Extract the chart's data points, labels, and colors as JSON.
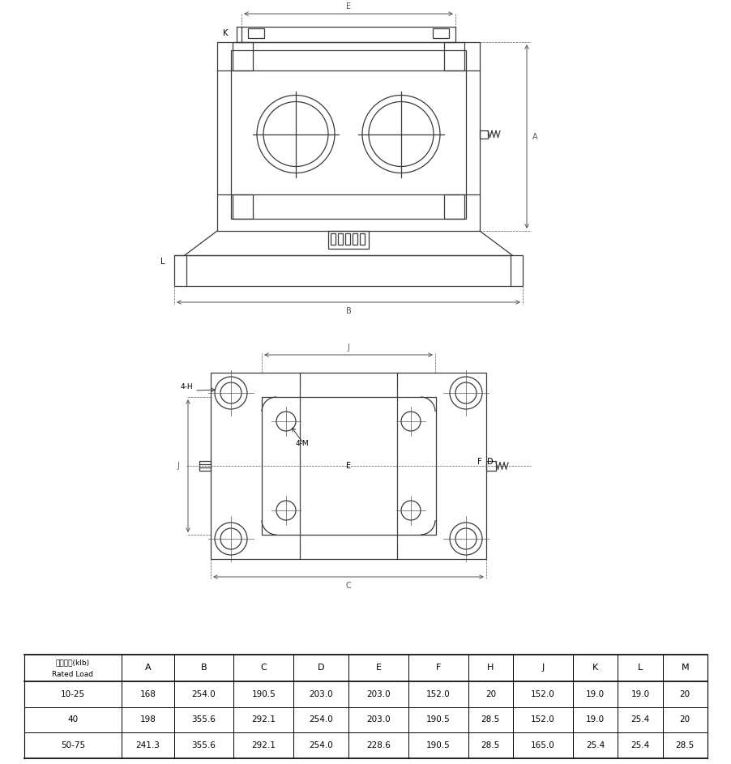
{
  "table_headers": [
    "额定载荷(klb)\nRated Load",
    "A",
    "B",
    "C",
    "D",
    "E",
    "F",
    "H",
    "J",
    "K",
    "L",
    "M"
  ],
  "table_rows": [
    [
      "10-25",
      "168",
      "254.0",
      "190.5",
      "203.0",
      "203.0",
      "152.0",
      "20",
      "152.0",
      "19.0",
      "19.0",
      "20"
    ],
    [
      "40",
      "198",
      "355.6",
      "292.1",
      "254.0",
      "203.0",
      "190.5",
      "28.5",
      "152.0",
      "19.0",
      "25.4",
      "20"
    ],
    [
      "50-75",
      "241.3",
      "355.6",
      "292.1",
      "254.0",
      "228.6",
      "190.5",
      "28.5",
      "165.0",
      "25.4",
      "25.4",
      "28.5"
    ]
  ],
  "line_color": "#3a3a3a",
  "dim_color": "#555555",
  "bg_color": "#ffffff"
}
